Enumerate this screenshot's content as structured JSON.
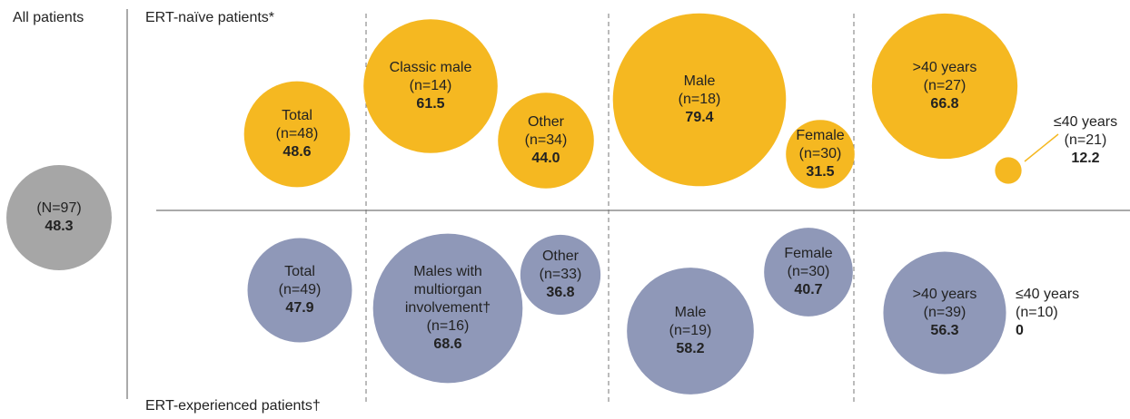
{
  "all": {
    "title": "All patients",
    "n": "(N=97)",
    "value": 48.3,
    "value_label": "48.3"
  },
  "naive_title": "ERT-naïve patients*",
  "experienced_title": "ERT-experienced patients†",
  "naive": [
    {
      "label": [
        "Total"
      ],
      "n": "(n=48)",
      "value": 48.6,
      "value_label": "48.6"
    },
    {
      "label": [
        "Classic male"
      ],
      "n": "(n=14)",
      "value": 61.5,
      "value_label": "61.5"
    },
    {
      "label": [
        "Other"
      ],
      "n": "(n=34)",
      "value": 44.0,
      "value_label": "44.0"
    },
    {
      "label": [
        "Male"
      ],
      "n": "(n=18)",
      "value": 79.4,
      "value_label": "79.4"
    },
    {
      "label": [
        "Female"
      ],
      "n": "(n=30)",
      "value": 31.5,
      "value_label": "31.5"
    },
    {
      "label": [
        ">40 years"
      ],
      "n": "(n=27)",
      "value": 66.8,
      "value_label": "66.8"
    },
    {
      "label": [
        "≤40 years"
      ],
      "n": "(n=21)",
      "value": 12.2,
      "value_label": "12.2"
    }
  ],
  "experienced": [
    {
      "label": [
        "Total"
      ],
      "n": "(n=49)",
      "value": 47.9,
      "value_label": "47.9"
    },
    {
      "label": [
        "Males with",
        "multiorgan",
        "involvement†"
      ],
      "n": "(n=16)",
      "value": 68.6,
      "value_label": "68.6"
    },
    {
      "label": [
        "Other"
      ],
      "n": "(n=33)",
      "value": 36.8,
      "value_label": "36.8"
    },
    {
      "label": [
        "Male"
      ],
      "n": "(n=19)",
      "value": 58.2,
      "value_label": "58.2"
    },
    {
      "label": [
        "Female"
      ],
      "n": "(n=30)",
      "value": 40.7,
      "value_label": "40.7"
    },
    {
      "label": [
        ">40 years"
      ],
      "n": "(n=39)",
      "value": 56.3,
      "value_label": "56.3"
    },
    {
      "label": [
        "≤40 years"
      ],
      "n": "(n=10)",
      "value": 0,
      "value_label": "0"
    }
  ]
}
